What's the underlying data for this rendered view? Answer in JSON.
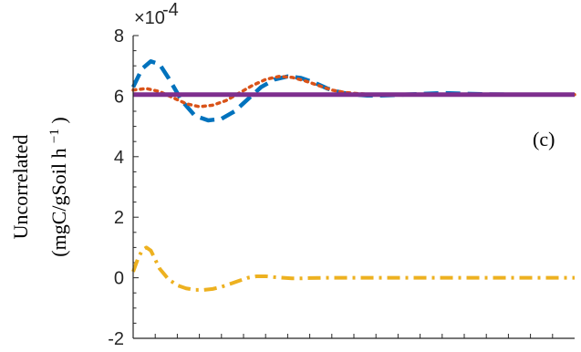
{
  "chart_data": {
    "type": "line",
    "title": "",
    "xlabel": "",
    "ylabel_line1": "Uncorrelated",
    "ylabel_line2": "(mgC/gSoil h",
    "ylabel_sup": "−1",
    "ylabel_close": ")",
    "y_multiplier": "×10",
    "y_multiplier_exp": "-4",
    "panel_label": "(c)",
    "ylim": [
      -2,
      8
    ],
    "xlim": [
      0,
      100
    ],
    "yticks": [
      -2,
      0,
      2,
      4,
      6,
      8
    ],
    "ytick_labels": [
      "-2",
      "0",
      "2",
      "4",
      "6",
      "8"
    ],
    "x_minor_tick_count": 20,
    "grid": false,
    "series": [
      {
        "color": "#0072BD",
        "style": "dashed",
        "x": [
          0,
          2,
          4,
          6,
          8,
          11,
          14,
          17,
          20,
          23,
          26,
          29,
          32,
          35,
          38,
          41,
          44,
          47,
          50,
          53,
          56,
          60,
          65,
          70,
          75,
          80,
          85,
          90,
          95,
          100
        ],
        "y": [
          6.3,
          6.9,
          7.15,
          7.05,
          6.6,
          5.85,
          5.35,
          5.2,
          5.25,
          5.5,
          5.9,
          6.3,
          6.55,
          6.65,
          6.6,
          6.45,
          6.25,
          6.12,
          6.05,
          6.02,
          6.02,
          6.04,
          6.07,
          6.1,
          6.08,
          6.06,
          6.05,
          6.05,
          6.05,
          6.05
        ]
      },
      {
        "color": "#D95319",
        "style": "dotted",
        "x": [
          0,
          3,
          6,
          9,
          12,
          15,
          18,
          21,
          24,
          27,
          30,
          33,
          36,
          39,
          42,
          45,
          48,
          51,
          55,
          60,
          65,
          70,
          75,
          80,
          85,
          90,
          95,
          100
        ],
        "y": [
          6.2,
          6.25,
          6.15,
          5.95,
          5.75,
          5.65,
          5.7,
          5.85,
          6.1,
          6.35,
          6.55,
          6.65,
          6.62,
          6.5,
          6.35,
          6.2,
          6.12,
          6.08,
          6.05,
          6.05,
          6.05,
          6.05,
          6.05,
          6.05,
          6.05,
          6.05,
          6.05,
          6.05
        ]
      },
      {
        "color": "#EDB120",
        "style": "dashdot",
        "x": [
          0,
          1,
          2,
          3,
          4,
          5,
          6,
          8,
          10,
          12,
          14,
          16,
          18,
          20,
          22,
          24,
          26,
          28,
          30,
          32,
          34,
          36,
          38,
          40,
          44,
          48,
          52,
          56,
          60,
          70,
          80,
          90,
          100
        ],
        "y": [
          0.2,
          0.6,
          0.9,
          1.0,
          0.9,
          0.6,
          0.3,
          -0.05,
          -0.25,
          -0.35,
          -0.4,
          -0.4,
          -0.37,
          -0.3,
          -0.2,
          -0.1,
          0.0,
          0.05,
          0.05,
          0.02,
          0.0,
          -0.02,
          -0.02,
          -0.01,
          0.0,
          0.0,
          0.0,
          0.0,
          0.0,
          0.0,
          0.0,
          0.0,
          0.0
        ]
      },
      {
        "color": "#7E2F8E",
        "style": "solid",
        "x": [
          0,
          100
        ],
        "y": [
          6.05,
          6.05
        ]
      }
    ]
  }
}
